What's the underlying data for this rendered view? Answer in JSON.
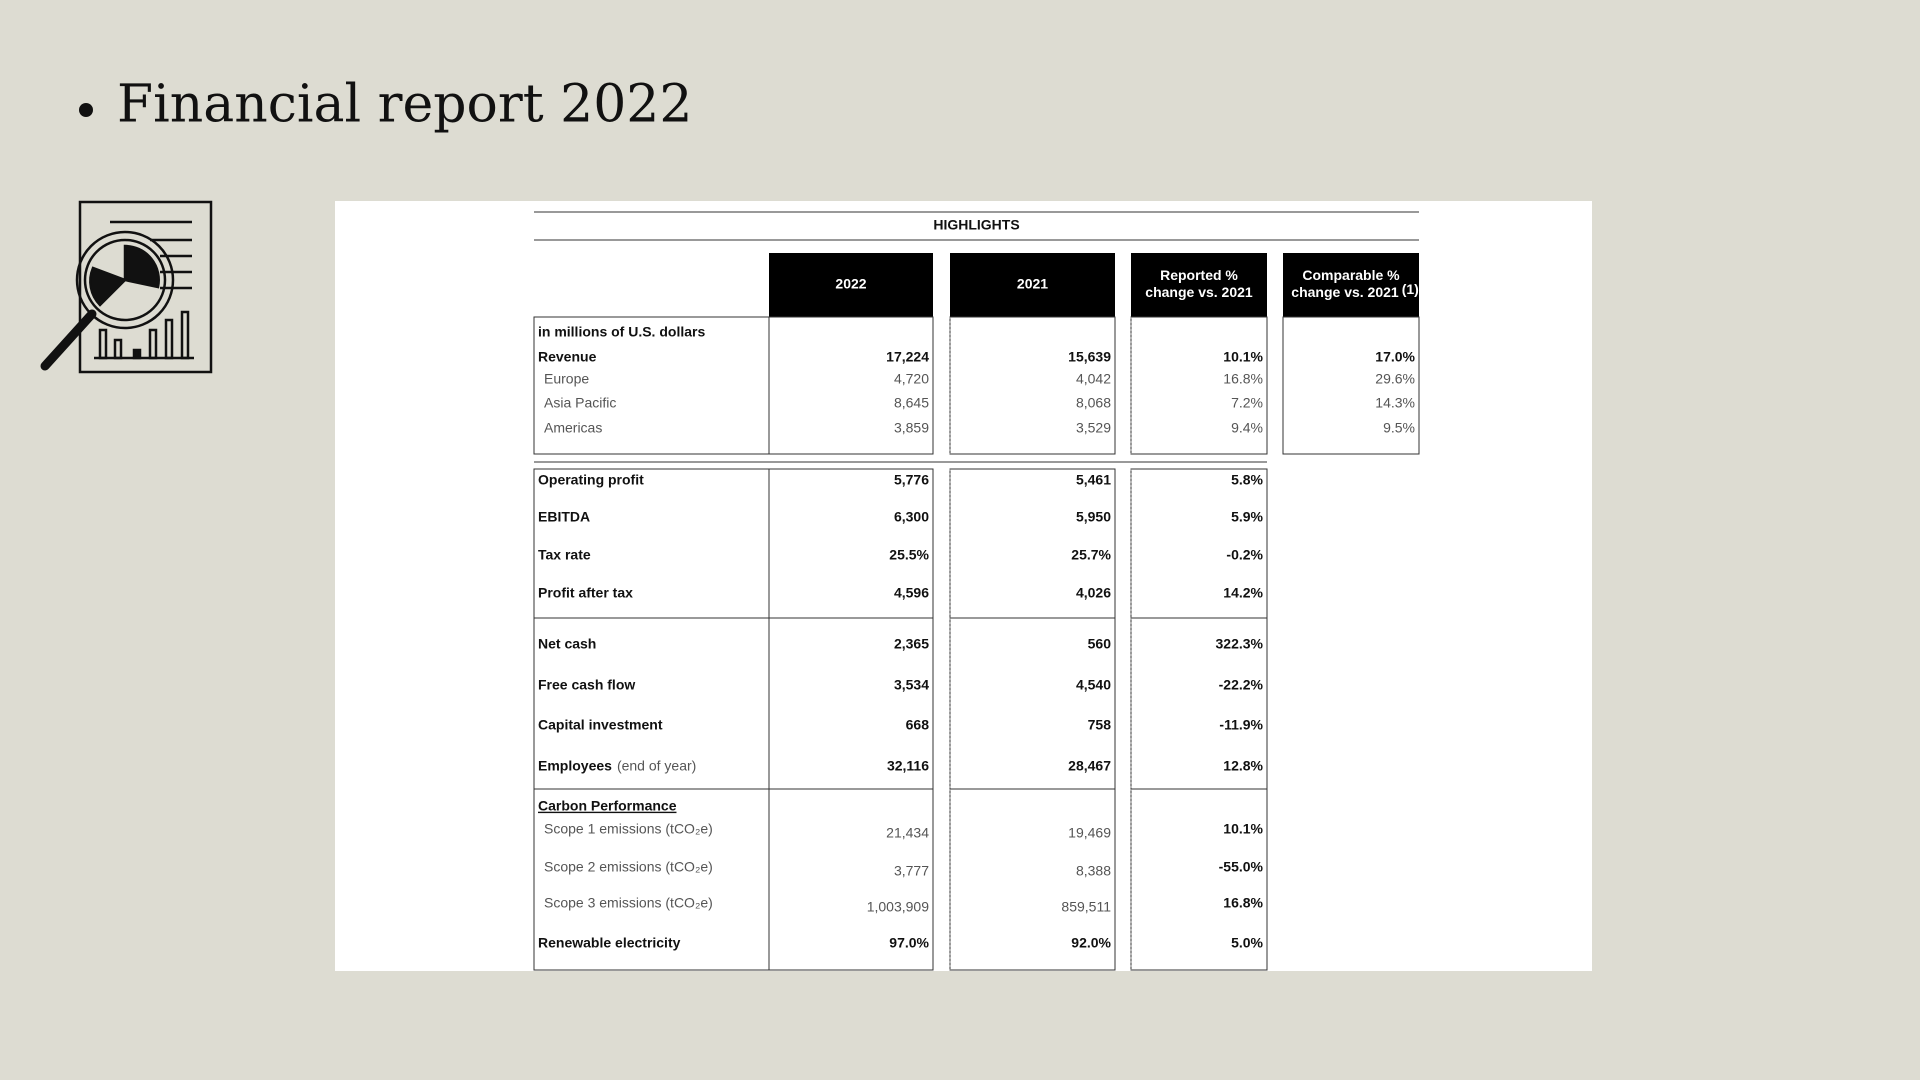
{
  "header": {
    "title": "Financial report 2022"
  },
  "table": {
    "title": "HIGHLIGHTS",
    "columns": [
      {
        "lines": [
          "2022"
        ]
      },
      {
        "lines": [
          "2021"
        ]
      },
      {
        "lines": [
          "Reported %",
          "change vs. 2021"
        ]
      },
      {
        "lines": [
          "Comparable %",
          "change vs. 2021"
        ],
        "note": "(1)"
      }
    ],
    "rows": [
      {
        "label": "in millions of U.S. dollars"
      },
      {
        "label": "Revenue",
        "values": [
          "17,224",
          "15,639",
          "10.1%",
          "17.0%"
        ]
      },
      {
        "label": "Europe",
        "values": [
          "4,720",
          "4,042",
          "16.8%",
          "29.6%"
        ]
      },
      {
        "label": "Asia Pacific",
        "values": [
          "8,645",
          "8,068",
          "7.2%",
          "14.3%"
        ]
      },
      {
        "label": "Americas",
        "values": [
          "3,859",
          "3,529",
          "9.4%",
          "9.5%"
        ]
      },
      {
        "label": "Operating profit",
        "values": [
          "5,776",
          "5,461",
          "5.8%"
        ]
      },
      {
        "label": "EBITDA",
        "values": [
          "6,300",
          "5,950",
          "5.9%"
        ]
      },
      {
        "label": "Tax rate",
        "values": [
          "25.5%",
          "25.7%",
          "-0.2%"
        ]
      },
      {
        "label": "Profit after tax",
        "values": [
          "4,596",
          "4,026",
          "14.2%"
        ]
      },
      {
        "label": "Net cash",
        "values": [
          "2,365",
          "560",
          "322.3%"
        ]
      },
      {
        "label": "Free cash flow",
        "values": [
          "3,534",
          "4,540",
          "-22.2%"
        ]
      },
      {
        "label": "Capital investment",
        "values": [
          "668",
          "758",
          "-11.9%"
        ]
      },
      {
        "label": "Employees",
        "note": "(end of year)",
        "values": [
          "32,116",
          "28,467",
          "12.8%"
        ]
      },
      {
        "label": "Carbon Performance"
      },
      {
        "label": "Scope 1 emissions (tCO₂e)",
        "values": [
          "21,434",
          "19,469",
          "10.1%"
        ]
      },
      {
        "label": "Scope 2 emissions (tCO₂e)",
        "values": [
          "3,777",
          "8,388",
          "-55.0%"
        ]
      },
      {
        "label": "Scope 3 emissions (tCO₂e)",
        "values": [
          "1,003,909",
          "859,511",
          "16.8%"
        ]
      },
      {
        "label": "Renewable electricity",
        "values": [
          "97.0%",
          "92.0%",
          "5.0%"
        ]
      }
    ]
  }
}
